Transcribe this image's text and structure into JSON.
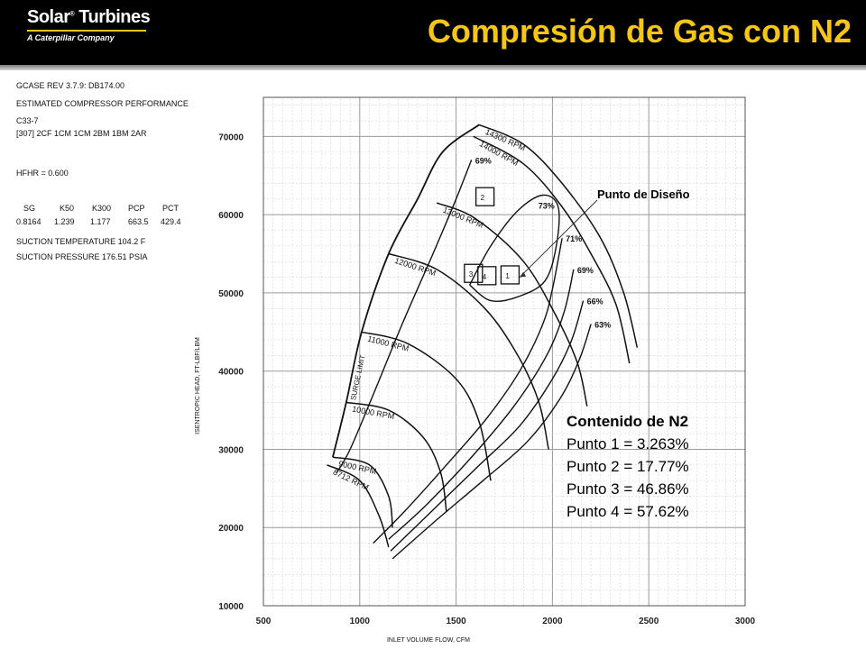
{
  "header": {
    "logo_main": "Solar",
    "logo_reg": "®",
    "logo_second": " Turbines",
    "logo_sub": "A Caterpillar Company",
    "title": "Compresión de Gas con N2"
  },
  "info": {
    "line1": "GCASE REV 3.7.9: DB174.00",
    "line2": "ESTIMATED COMPRESSOR PERFORMANCE",
    "line3": "C33-7",
    "line4": "[307] 2CF 1CM 1CM 2BM 1BM 2AR",
    "hfhr": "HFHR = 0.600",
    "table_headers": [
      "SG",
      "K50",
      "K300",
      "PCP",
      "PCT"
    ],
    "table_values": [
      "0.8164",
      "1.239",
      "1.177",
      "663.5",
      "429.4"
    ],
    "suction_temp": "SUCTION TEMPERATURE 104.2 F",
    "suction_press": "SUCTION PRESSURE 176.51 PSIA"
  },
  "legend": {
    "heading": "Contenido de N2",
    "items": [
      "Punto 1 = 3.263%",
      "Punto 2 = 17.77%",
      "Punto 3 = 46.86%",
      "Punto 4 = 57.62%"
    ]
  },
  "chart_data": {
    "type": "line",
    "xlabel": "INLET VOLUME FLOW, CFM",
    "ylabel": "ISENTROPIC HEAD, FT-LBF/LBM",
    "xlim": [
      500,
      3000
    ],
    "ylim": [
      10000,
      75000
    ],
    "x_ticks": [
      500,
      1000,
      1500,
      2000,
      2500,
      3000
    ],
    "y_ticks": [
      10000,
      20000,
      30000,
      40000,
      50000,
      60000,
      70000
    ],
    "grid": true,
    "surge_label": "SURGE LIMIT",
    "surge_line": [
      [
        860,
        29000
      ],
      [
        930,
        36000
      ],
      [
        1010,
        45000
      ],
      [
        1150,
        55000
      ],
      [
        1300,
        62000
      ],
      [
        1430,
        68000
      ],
      [
        1620,
        71500
      ]
    ],
    "speed_lines": [
      {
        "name": "14300 RPM",
        "points": [
          [
            1620,
            71500
          ],
          [
            1850,
            69000
          ],
          [
            2050,
            64000
          ],
          [
            2250,
            57000
          ],
          [
            2370,
            50000
          ],
          [
            2440,
            43000
          ]
        ]
      },
      {
        "name": "14000 RPM",
        "points": [
          [
            1590,
            70000
          ],
          [
            1850,
            66500
          ],
          [
            2050,
            61000
          ],
          [
            2200,
            55000
          ],
          [
            2330,
            48500
          ],
          [
            2400,
            41000
          ]
        ]
      },
      {
        "name": "13000 RPM",
        "points": [
          [
            1400,
            61500
          ],
          [
            1600,
            59500
          ],
          [
            1850,
            54000
          ],
          [
            2020,
            47000
          ],
          [
            2130,
            41000
          ],
          [
            2180,
            35500
          ]
        ]
      },
      {
        "name": "12000 RPM",
        "points": [
          [
            1150,
            55000
          ],
          [
            1400,
            53000
          ],
          [
            1650,
            48000
          ],
          [
            1820,
            42000
          ],
          [
            1930,
            36000
          ],
          [
            1980,
            30000
          ]
        ]
      },
      {
        "name": "11000 RPM",
        "points": [
          [
            1010,
            45000
          ],
          [
            1250,
            43500
          ],
          [
            1500,
            39000
          ],
          [
            1620,
            33500
          ],
          [
            1680,
            26000
          ]
        ]
      },
      {
        "name": "10000 RPM",
        "points": [
          [
            930,
            36000
          ],
          [
            1150,
            35000
          ],
          [
            1330,
            31500
          ],
          [
            1420,
            27000
          ],
          [
            1450,
            22000
          ]
        ]
      },
      {
        "name": "9000 RPM",
        "points": [
          [
            860,
            29000
          ],
          [
            1050,
            28000
          ],
          [
            1150,
            24000
          ],
          [
            1170,
            20000
          ]
        ]
      },
      {
        "name": "8712 RPM",
        "points": [
          [
            830,
            28000
          ],
          [
            1000,
            26000
          ],
          [
            1100,
            21500
          ],
          [
            1150,
            17500
          ]
        ]
      }
    ],
    "efficiency_lines": [
      {
        "name": "69%",
        "points": [
          [
            1580,
            67000
          ],
          [
            1500,
            62000
          ],
          [
            1380,
            55000
          ],
          [
            1220,
            46000
          ],
          [
            1070,
            37000
          ],
          [
            950,
            30000
          ],
          [
            880,
            27000
          ]
        ]
      },
      {
        "name": "71%",
        "points": [
          [
            2050,
            57000
          ],
          [
            2000,
            50500
          ],
          [
            1950,
            46000
          ],
          [
            1830,
            40000
          ],
          [
            1660,
            34000
          ],
          [
            1450,
            28000
          ],
          [
            1230,
            22000
          ],
          [
            1070,
            18000
          ]
        ]
      },
      {
        "name": "69%",
        "points": [
          [
            2110,
            53000
          ],
          [
            2060,
            47500
          ],
          [
            1970,
            42000
          ],
          [
            1800,
            35500
          ],
          [
            1580,
            29000
          ],
          [
            1350,
            23000
          ],
          [
            1150,
            18500
          ]
        ]
      },
      {
        "name": "66%",
        "points": [
          [
            2160,
            49000
          ],
          [
            2100,
            44000
          ],
          [
            2000,
            39000
          ],
          [
            1830,
            33000
          ],
          [
            1600,
            27500
          ],
          [
            1370,
            22000
          ],
          [
            1160,
            17000
          ]
        ]
      },
      {
        "name": "63%",
        "points": [
          [
            2200,
            46000
          ],
          [
            2140,
            41500
          ],
          [
            2040,
            36500
          ],
          [
            1870,
            31000
          ],
          [
            1640,
            26000
          ],
          [
            1400,
            21000
          ],
          [
            1170,
            16000
          ]
        ]
      }
    ],
    "efficiency_island": {
      "name": "73%",
      "points": [
        [
          1570,
          51000
        ],
        [
          1680,
          56000
        ],
        [
          1820,
          60500
        ],
        [
          1950,
          62500
        ],
        [
          2030,
          61000
        ],
        [
          2020,
          56000
        ],
        [
          1960,
          51500
        ],
        [
          1820,
          49500
        ],
        [
          1680,
          49000
        ],
        [
          1570,
          51000
        ]
      ]
    },
    "design_points": [
      {
        "label": "1",
        "x": 1780,
        "y": 52300
      },
      {
        "label": "2",
        "x": 1650,
        "y": 62300
      },
      {
        "label": "3",
        "x": 1590,
        "y": 52500
      },
      {
        "label": "4",
        "x": 1660,
        "y": 52200
      }
    ],
    "annotation": "Punto de Diseño",
    "annotation_target": [
      1830,
      52000
    ]
  }
}
